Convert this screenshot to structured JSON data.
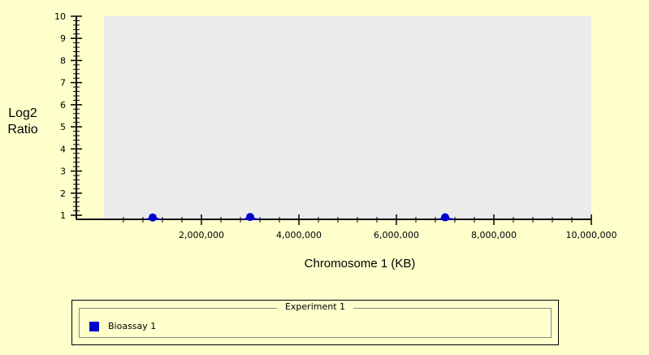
{
  "chart_data": {
    "type": "scatter",
    "ylabel_lines": [
      "Log2",
      "Ratio"
    ],
    "xlabel": "Chromosome 1 (KB)",
    "xlim": [
      0,
      10000000
    ],
    "ylim": [
      1,
      10
    ],
    "x_tick_labels": [
      "2,000,000",
      "4,000,000",
      "6,000,000",
      "8,000,000",
      "10,000,000"
    ],
    "y_tick_labels": [
      "1",
      "2",
      "3",
      "4",
      "5",
      "6",
      "7",
      "8",
      "9",
      "10"
    ],
    "grid": false,
    "series": [
      {
        "name": "Bioassay 1",
        "color": "#0000cc",
        "points": [
          {
            "x": 1000000,
            "y": 0.92
          },
          {
            "x": 3000000,
            "y": 0.96
          },
          {
            "x": 7000000,
            "y": 0.93
          }
        ]
      }
    ]
  },
  "legend": {
    "title": "Experiment 1",
    "items": [
      {
        "label": "Bioassay 1",
        "color": "#0000cc"
      }
    ]
  }
}
